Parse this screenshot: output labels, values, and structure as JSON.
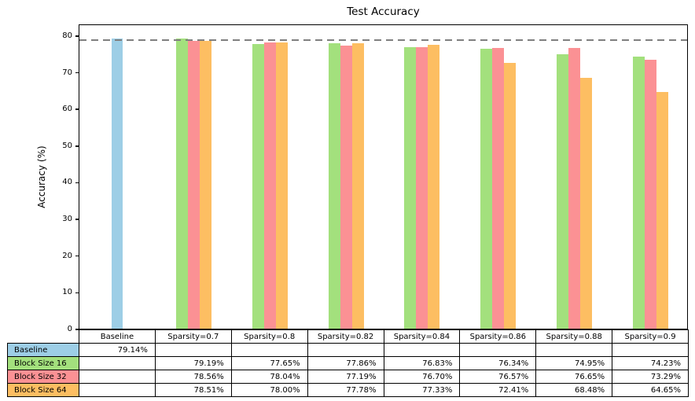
{
  "chart_data": {
    "type": "bar",
    "title": "Test Accuracy",
    "xlabel": "",
    "ylabel": "Accuracy (%)",
    "ylim": [
      0,
      83.2
    ],
    "yticks": [
      0,
      10,
      20,
      30,
      40,
      50,
      60,
      70,
      80
    ],
    "grid": false,
    "legend_position": "table-below",
    "categories": [
      "Baseline",
      "Sparsity=0.7",
      "Sparsity=0.8",
      "Sparsity=0.82",
      "Sparsity=0.84",
      "Sparsity=0.86",
      "Sparsity=0.88",
      "Sparsity=0.9"
    ],
    "baseline": {
      "label": "Baseline",
      "value": 79.14,
      "color": "#9DCEE6"
    },
    "reference_line": {
      "value": 79.14,
      "style": "dashed",
      "color": "#7f7f7f"
    },
    "series": [
      {
        "name": "Block Size 16",
        "color": "#A3E07D",
        "values": [
          null,
          79.19,
          77.65,
          77.86,
          76.83,
          76.34,
          74.95,
          74.23
        ]
      },
      {
        "name": "Block Size 32",
        "color": "#FB9194",
        "values": [
          null,
          78.56,
          78.04,
          77.19,
          76.7,
          76.57,
          76.65,
          73.29
        ]
      },
      {
        "name": "Block Size 64",
        "color": "#FDBE62",
        "values": [
          null,
          78.51,
          78.0,
          77.78,
          77.33,
          72.41,
          68.48,
          64.65
        ]
      }
    ],
    "table": {
      "col_headers": [
        "Baseline",
        "Sparsity=0.7",
        "Sparsity=0.8",
        "Sparsity=0.82",
        "Sparsity=0.84",
        "Sparsity=0.86",
        "Sparsity=0.88",
        "Sparsity=0.9"
      ],
      "rows": [
        {
          "label": "Baseline",
          "color": "#9DCEE6",
          "cells": [
            "79.14%",
            "",
            "",
            "",
            "",
            "",
            "",
            ""
          ]
        },
        {
          "label": "Block Size 16",
          "color": "#A3E07D",
          "cells": [
            "",
            "79.19%",
            "77.65%",
            "77.86%",
            "76.83%",
            "76.34%",
            "74.95%",
            "74.23%"
          ]
        },
        {
          "label": "Block Size 32",
          "color": "#FB9194",
          "cells": [
            "",
            "78.56%",
            "78.04%",
            "77.19%",
            "76.70%",
            "76.57%",
            "76.65%",
            "73.29%"
          ]
        },
        {
          "label": "Block Size 64",
          "color": "#FDBE62",
          "cells": [
            "",
            "78.51%",
            "78.00%",
            "77.78%",
            "77.33%",
            "72.41%",
            "68.48%",
            "64.65%"
          ]
        }
      ]
    }
  }
}
